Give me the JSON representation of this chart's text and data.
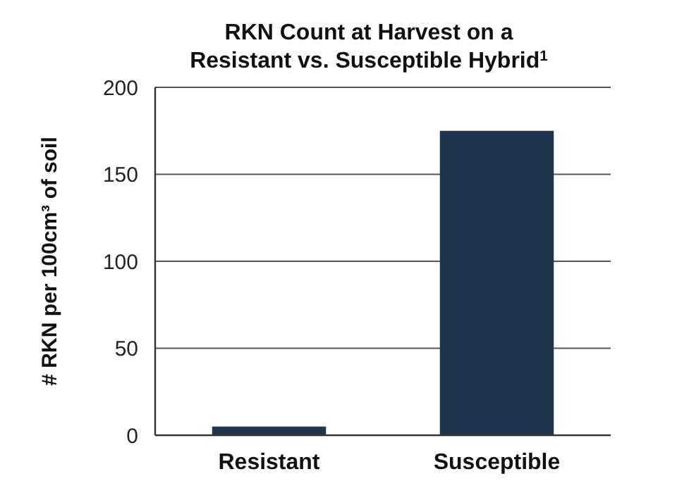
{
  "chart_data": {
    "type": "bar",
    "title": "RKN Count at Harvest on a\nResistant vs. Susceptible Hybrid$^{1}$",
    "ylabel": "# RKN per 100cm³ of soil",
    "categories": [
      "Resistant",
      "Susceptible"
    ],
    "values": [
      5,
      175
    ],
    "color": "#1f364c",
    "ylim": [
      0,
      200
    ],
    "yticks": [
      0,
      50,
      100,
      150,
      200
    ],
    "grid": "y"
  }
}
